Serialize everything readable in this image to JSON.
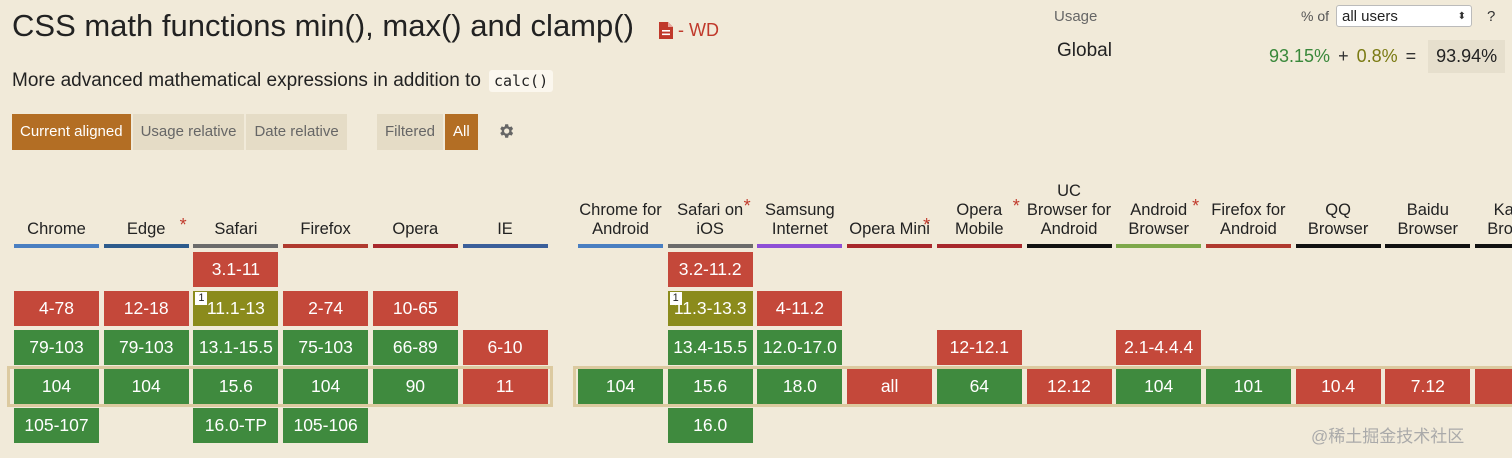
{
  "title": "CSS math functions min(), max() and clamp()",
  "status": "- WD",
  "description": "More advanced mathematical expressions in addition to",
  "description_code": "calc()",
  "view_tabs": [
    "Current aligned",
    "Usage relative",
    "Date relative"
  ],
  "filter_tabs": [
    "Filtered",
    "All"
  ],
  "usage": {
    "label": "Usage",
    "percent_of": "% of",
    "scope_option": "all users",
    "help": "?",
    "global_label": "Global",
    "supported": "93.15%",
    "partial": "0.8%",
    "plus": "+",
    "equals": "=",
    "total": "93.94%"
  },
  "colors": {
    "supported": "#3f8a3e",
    "unsupported": "#c4483a",
    "partial": "#8b8b1c",
    "accent": "#b36e24"
  },
  "desktop_browsers": [
    {
      "name": "Chrome",
      "star": false,
      "color": "#4a7fc1",
      "cells": [
        null,
        {
          "v": "4-78",
          "s": "n"
        },
        {
          "v": "79-103",
          "s": "y"
        },
        {
          "v": "104",
          "s": "y"
        },
        {
          "v": "105-107",
          "s": "y"
        }
      ]
    },
    {
      "name": "Edge",
      "star": true,
      "color": "#2d5b8c",
      "cells": [
        null,
        {
          "v": "12-18",
          "s": "n"
        },
        {
          "v": "79-103",
          "s": "y"
        },
        {
          "v": "104",
          "s": "y"
        },
        null
      ]
    },
    {
      "name": "Safari",
      "star": false,
      "color": "#6b6b6b",
      "cells": [
        {
          "v": "3.1-11",
          "s": "n"
        },
        {
          "v": "11.1-13",
          "s": "a",
          "note": "1"
        },
        {
          "v": "13.1-15.5",
          "s": "y"
        },
        {
          "v": "15.6",
          "s": "y"
        },
        {
          "v": "16.0-TP",
          "s": "y"
        }
      ]
    },
    {
      "name": "Firefox",
      "star": false,
      "color": "#b03a2e",
      "cells": [
        null,
        {
          "v": "2-74",
          "s": "n"
        },
        {
          "v": "75-103",
          "s": "y"
        },
        {
          "v": "104",
          "s": "y"
        },
        {
          "v": "105-106",
          "s": "y"
        }
      ]
    },
    {
      "name": "Opera",
      "star": false,
      "color": "#a8282c",
      "cells": [
        null,
        {
          "v": "10-65",
          "s": "n"
        },
        {
          "v": "66-89",
          "s": "y"
        },
        {
          "v": "90",
          "s": "y"
        },
        null
      ]
    },
    {
      "name": "IE",
      "star": false,
      "color": "#3b5f9a",
      "cells": [
        null,
        null,
        {
          "v": "6-10",
          "s": "n"
        },
        {
          "v": "11",
          "s": "n"
        },
        null
      ]
    }
  ],
  "mobile_browsers": [
    {
      "name": "Chrome for Android",
      "star": false,
      "color": "#4a7fc1",
      "cells": [
        null,
        null,
        null,
        {
          "v": "104",
          "s": "y"
        },
        null
      ]
    },
    {
      "name": "Safari on iOS",
      "star": true,
      "color": "#6b6b6b",
      "cells": [
        {
          "v": "3.2-11.2",
          "s": "n"
        },
        {
          "v": "11.3-13.3",
          "s": "a",
          "note": "1"
        },
        {
          "v": "13.4-15.5",
          "s": "y"
        },
        {
          "v": "15.6",
          "s": "y"
        },
        {
          "v": "16.0",
          "s": "y"
        }
      ]
    },
    {
      "name": "Samsung Internet",
      "star": false,
      "color": "#8e4fd6",
      "cells": [
        null,
        {
          "v": "4-11.2",
          "s": "n"
        },
        {
          "v": "12.0-17.0",
          "s": "y"
        },
        {
          "v": "18.0",
          "s": "y"
        },
        null
      ]
    },
    {
      "name": "Opera Mini",
      "star": true,
      "color": "#a8282c",
      "cells": [
        null,
        null,
        null,
        {
          "v": "all",
          "s": "n"
        },
        null
      ]
    },
    {
      "name": "Opera Mobile",
      "star": true,
      "color": "#a8282c",
      "cells": [
        null,
        null,
        {
          "v": "12-12.1",
          "s": "n"
        },
        {
          "v": "64",
          "s": "y"
        },
        null
      ]
    },
    {
      "name": "UC Browser for Android",
      "star": false,
      "color": "#111111",
      "cells": [
        null,
        null,
        null,
        {
          "v": "12.12",
          "s": "n"
        },
        null
      ]
    },
    {
      "name": "Android Browser",
      "star": true,
      "color": "#7ea84a",
      "cells": [
        null,
        null,
        {
          "v": "2.1-4.4.4",
          "s": "n"
        },
        {
          "v": "104",
          "s": "y"
        },
        null
      ]
    },
    {
      "name": "Firefox for Android",
      "star": false,
      "color": "#b03a2e",
      "cells": [
        null,
        null,
        null,
        {
          "v": "101",
          "s": "y"
        },
        null
      ]
    },
    {
      "name": "QQ Browser",
      "star": false,
      "color": "#111111",
      "cells": [
        null,
        null,
        null,
        {
          "v": "10.4",
          "s": "n"
        },
        null
      ]
    },
    {
      "name": "Baidu Browser",
      "star": false,
      "color": "#111111",
      "cells": [
        null,
        null,
        null,
        {
          "v": "7.12",
          "s": "n"
        },
        null
      ]
    },
    {
      "name": "KaiOS Browser",
      "star": false,
      "color": "#111111",
      "cells": [
        null,
        null,
        null,
        {
          "v": "",
          "s": "n"
        },
        null
      ]
    }
  ],
  "watermark": "@稀土掘金技术社区"
}
